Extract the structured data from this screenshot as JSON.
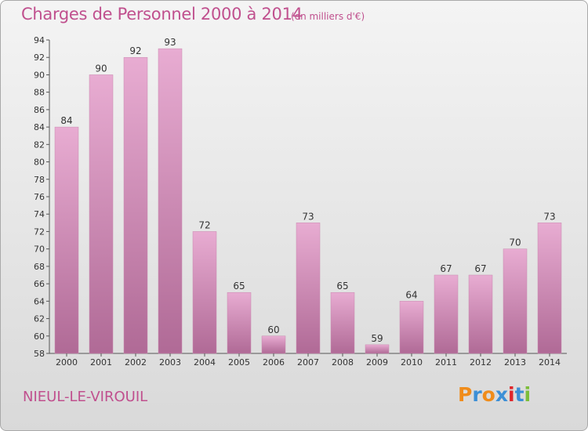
{
  "header": {
    "title": "Charges de Personnel 2000 à 2014",
    "subtitle": "(en milliers d'€)"
  },
  "footer": {
    "commune": "NIEUL-LE-VIROUIL",
    "logo": [
      "P",
      "r",
      "o",
      "x",
      "i",
      "t",
      "i"
    ]
  },
  "colors": {
    "bar_light": "#e8acd2",
    "bar_dark": "#b06a96",
    "accent": "#c0508e",
    "logo": [
      "#f08c1a",
      "#3c8fd6",
      "#f08c1a",
      "#3c8fd6",
      "#e0262b",
      "#3c8fd6",
      "#7cbd3a"
    ]
  },
  "chart_data": {
    "type": "bar",
    "title": "Charges de Personnel 2000 à 2014",
    "subtitle": "(en milliers d'€)",
    "categories": [
      "2000",
      "2001",
      "2002",
      "2003",
      "2004",
      "2005",
      "2006",
      "2007",
      "2008",
      "2009",
      "2010",
      "2011",
      "2012",
      "2013",
      "2014"
    ],
    "values": [
      84,
      90,
      92,
      93,
      72,
      65,
      60,
      73,
      65,
      59,
      64,
      67,
      67,
      70,
      73
    ],
    "ylim": [
      58,
      94
    ],
    "yticks": [
      58,
      60,
      62,
      64,
      66,
      68,
      70,
      72,
      74,
      76,
      78,
      80,
      82,
      84,
      86,
      88,
      90,
      92,
      94
    ],
    "grid": false,
    "legend": "none"
  }
}
